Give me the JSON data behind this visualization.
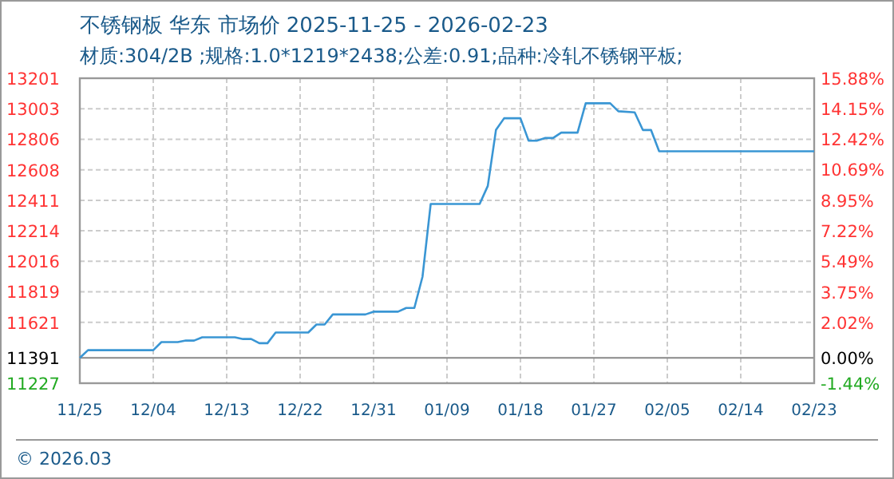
{
  "chart_data": {
    "type": "line",
    "title": "不锈钢板 华东 市场价 2025-11-25 - 2026-02-23",
    "subtitle": "材质:304/2B ;规格:1.0*1219*2438;公差:0.91;品种:冷轧不锈钢平板;",
    "x": [
      "2025-11-25",
      "2025-11-26",
      "2025-12-04",
      "2025-12-05",
      "2025-12-07",
      "2025-12-08",
      "2025-12-09",
      "2025-12-10",
      "2025-12-14",
      "2025-12-15",
      "2025-12-16",
      "2025-12-17",
      "2025-12-18",
      "2025-12-19",
      "2025-12-23",
      "2025-12-24",
      "2025-12-25",
      "2025-12-26",
      "2025-12-30",
      "2025-12-31",
      "2026-01-03",
      "2026-01-04",
      "2026-01-05",
      "2026-01-06",
      "2026-01-07",
      "2026-01-13",
      "2026-01-14",
      "2026-01-15",
      "2026-01-16",
      "2026-01-18",
      "2026-01-19",
      "2026-01-20",
      "2026-01-21",
      "2026-01-22",
      "2026-01-23",
      "2026-01-25",
      "2026-01-26",
      "2026-01-29",
      "2026-01-30",
      "2026-02-01",
      "2026-02-02",
      "2026-02-03",
      "2026-02-04",
      "2026-02-23"
    ],
    "series": [
      {
        "color": "#3a96d4",
        "values": [
          11391,
          11441,
          11441,
          11493,
          11493,
          11503,
          11503,
          11524,
          11524,
          11513,
          11513,
          11486,
          11486,
          11555,
          11555,
          11607,
          11607,
          11672,
          11672,
          11690,
          11690,
          11714,
          11714,
          11917,
          12387,
          12387,
          12504,
          12866,
          12942,
          12942,
          12797,
          12797,
          12814,
          12814,
          12849,
          12849,
          13039,
          13039,
          12987,
          12980,
          12866,
          12866,
          12728,
          12728
        ]
      }
    ],
    "xlim": [
      "2025-11-25",
      "2026-02-23"
    ],
    "xticks": [
      {
        "value": "2025-11-25",
        "label": "11/25"
      },
      {
        "value": "2025-12-04",
        "label": "12/04"
      },
      {
        "value": "2025-12-13",
        "label": "12/13"
      },
      {
        "value": "2025-12-22",
        "label": "12/22"
      },
      {
        "value": "2025-12-31",
        "label": "12/31"
      },
      {
        "value": "2026-01-09",
        "label": "01/09"
      },
      {
        "value": "2026-01-18",
        "label": "01/18"
      },
      {
        "value": "2026-01-27",
        "label": "01/27"
      },
      {
        "value": "2026-02-05",
        "label": "02/05"
      },
      {
        "value": "2026-02-14",
        "label": "02/14"
      },
      {
        "value": "2026-02-23",
        "label": "02/23"
      }
    ],
    "ylim": [
      11227,
      13201
    ],
    "yticks": [
      11227,
      11391,
      11621,
      11819,
      12016,
      12214,
      12411,
      12608,
      12806,
      13003,
      13201
    ],
    "y2lim": [
      -1.44,
      15.88
    ],
    "y2ticks": [
      {
        "value": -1.44,
        "label": "-1.44%"
      },
      {
        "value": 0,
        "label": "0.00%"
      },
      {
        "value": 2.02,
        "label": "2.02%"
      },
      {
        "value": 3.75,
        "label": "3.75%"
      },
      {
        "value": 5.49,
        "label": "5.49%"
      },
      {
        "value": 7.22,
        "label": "7.22%"
      },
      {
        "value": 8.95,
        "label": "8.95%"
      },
      {
        "value": 10.69,
        "label": "10.69%"
      },
      {
        "value": 12.42,
        "label": "12.42%"
      },
      {
        "value": 14.15,
        "label": "14.15%"
      },
      {
        "value": 15.88,
        "label": "15.88%"
      }
    ],
    "ref_lines": [
      {
        "axis": "y",
        "value": 11391,
        "color": "#888888"
      }
    ],
    "grid": true,
    "line_style": "solid",
    "annotations": [
      "© 2026.03"
    ]
  }
}
